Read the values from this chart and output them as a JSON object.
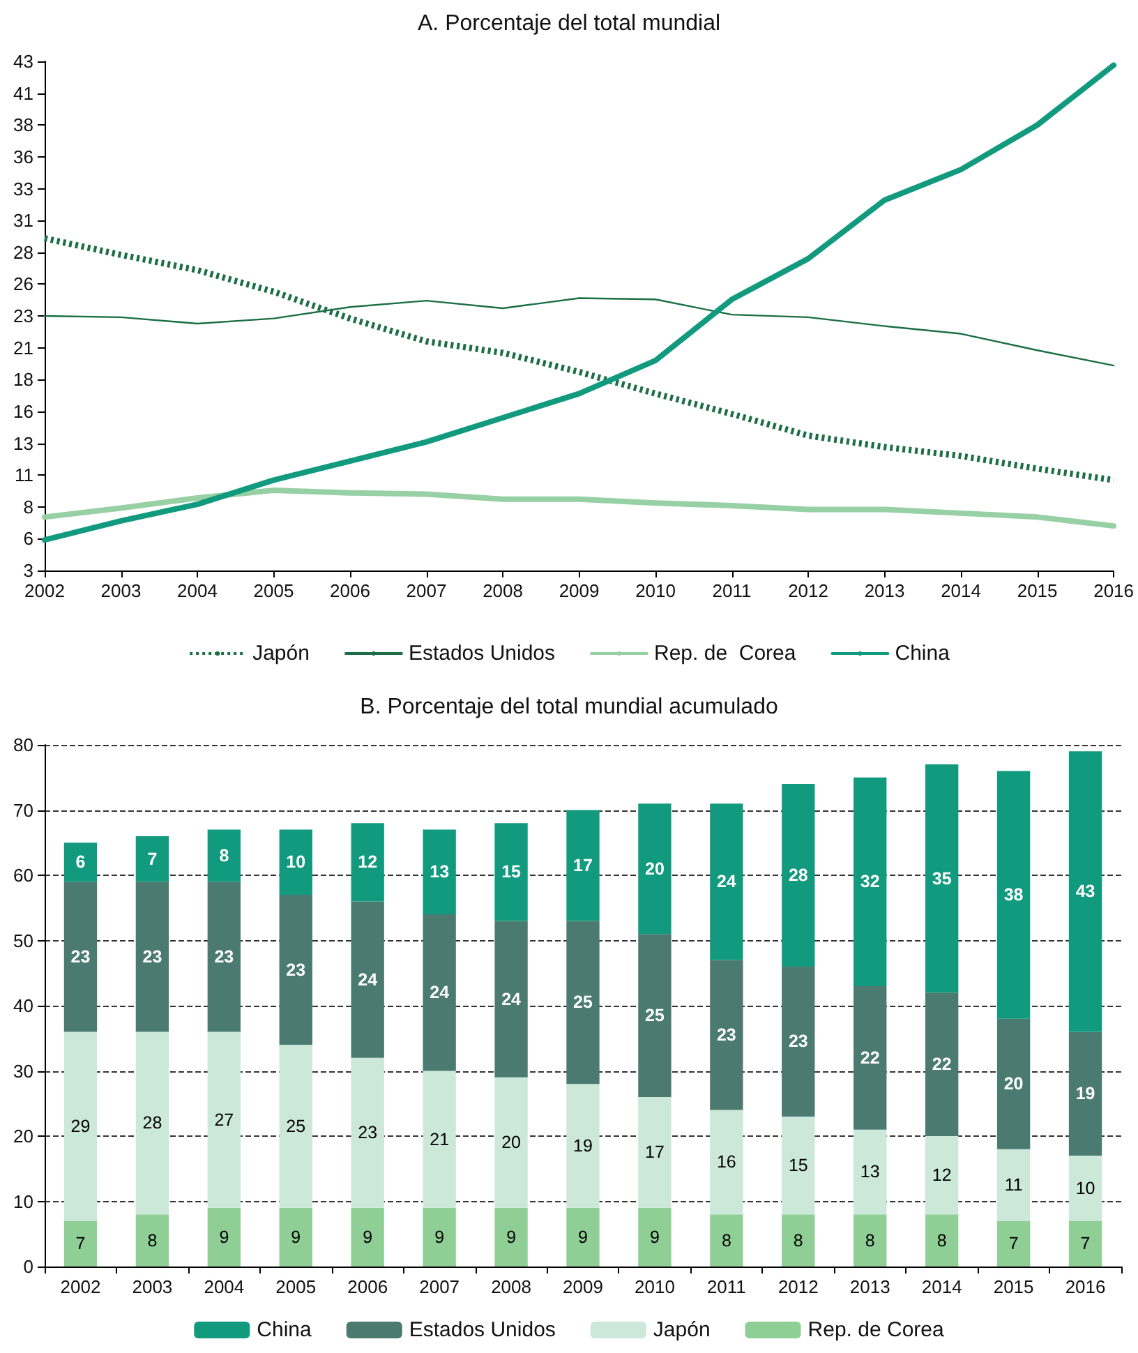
{
  "chart_data": [
    {
      "type": "line",
      "title": "A. Porcentaje del total mundial",
      "categories": [
        "2002",
        "2003",
        "2004",
        "2005",
        "2006",
        "2007",
        "2008",
        "2009",
        "2010",
        "2011",
        "2012",
        "2013",
        "2014",
        "2015",
        "2016"
      ],
      "ylim": [
        3,
        43
      ],
      "yticks": [
        3,
        {
          "value": 5.5,
          "label": "6"
        },
        8,
        {
          "value": 10.5,
          "label": "11"
        },
        13,
        {
          "value": 15.5,
          "label": "16"
        },
        18,
        {
          "value": 20.5,
          "label": "21"
        },
        23,
        {
          "value": 25.5,
          "label": "26"
        },
        28,
        {
          "value": 30.5,
          "label": "31"
        },
        33,
        {
          "value": 35.5,
          "label": "36"
        },
        38,
        {
          "value": 40.5,
          "label": "41"
        },
        43
      ],
      "grid": false,
      "legend": "bottom",
      "marker": "none",
      "series": [
        {
          "name": "Japón",
          "color": "#1b6e45",
          "line_style": "dotted",
          "values": [
            29.1,
            27.8,
            26.6,
            24.9,
            22.8,
            21.0,
            20.1,
            18.6,
            16.9,
            15.3,
            13.6,
            12.7,
            12.0,
            11.0,
            10.1
          ]
        },
        {
          "name": "Estados Unidos",
          "color": "#1b6e45",
          "line_style": "solid",
          "values": [
            23.0,
            22.9,
            22.4,
            22.8,
            23.7,
            24.2,
            23.6,
            24.4,
            24.3,
            23.1,
            22.9,
            22.2,
            21.6,
            20.3,
            19.1
          ]
        },
        {
          "name": "Rep. de  Corea",
          "color": "#98d0a6",
          "line_style": "solid",
          "values": [
            7.2,
            7.9,
            8.7,
            9.3,
            9.1,
            9.0,
            8.6,
            8.6,
            8.3,
            8.1,
            7.8,
            7.8,
            7.5,
            7.2,
            6.5
          ]
        },
        {
          "name": "China",
          "color": "#129a7f",
          "line_style": "solid",
          "values": [
            5.4,
            6.9,
            8.2,
            10.1,
            11.6,
            13.1,
            15.0,
            16.9,
            19.5,
            24.3,
            27.5,
            32.1,
            34.5,
            38.0,
            42.7
          ]
        }
      ]
    },
    {
      "type": "bar",
      "title": "B. Porcentaje del total mundial acumulado",
      "stacked": true,
      "data_labels": true,
      "categories": [
        "2002",
        "2003",
        "2004",
        "2005",
        "2006",
        "2007",
        "2008",
        "2009",
        "2010",
        "2011",
        "2012",
        "2013",
        "2014",
        "2015",
        "2016"
      ],
      "ylim": [
        0,
        80
      ],
      "yticks": [
        0,
        10,
        20,
        30,
        40,
        50,
        60,
        70,
        80
      ],
      "grid": "y",
      "legend": "bottom",
      "series": [
        {
          "name": "Rep. de Corea",
          "color": "#8fcf96",
          "values": [
            7,
            8,
            9,
            9,
            9,
            9,
            9,
            9,
            9,
            8,
            8,
            8,
            8,
            7,
            7
          ]
        },
        {
          "name": "Japón",
          "color": "#cce8d8",
          "values": [
            29,
            28,
            27,
            25,
            23,
            21,
            20,
            19,
            17,
            16,
            15,
            13,
            12,
            11,
            10
          ]
        },
        {
          "name": "Estados Unidos",
          "color": "#4a7a70",
          "values": [
            23,
            23,
            23,
            23,
            24,
            24,
            24,
            25,
            25,
            23,
            23,
            22,
            22,
            20,
            19
          ]
        },
        {
          "name": "China",
          "color": "#129a7f",
          "values": [
            6,
            7,
            8,
            10,
            12,
            13,
            15,
            17,
            20,
            24,
            28,
            32,
            35,
            38,
            43
          ]
        }
      ]
    }
  ]
}
